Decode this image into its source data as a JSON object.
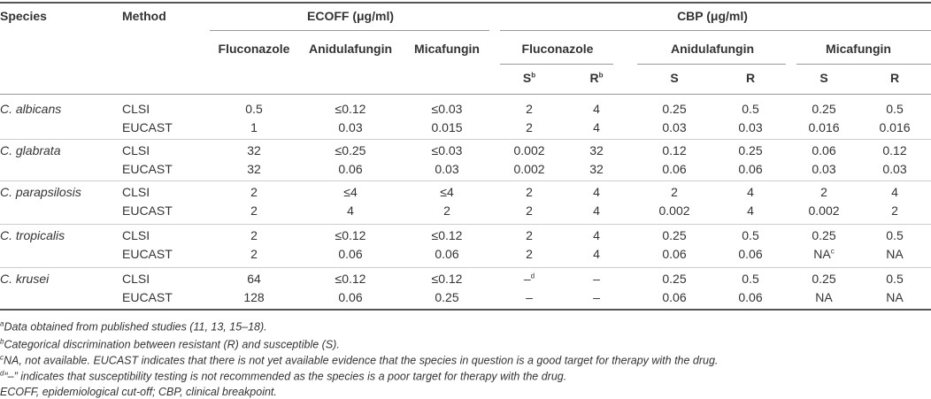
{
  "header": {
    "species": "Species",
    "method": "Method",
    "ecoff": "ECOFF (μg/ml)",
    "cbp": "CBP (μg/ml)",
    "ecoff_drugs": [
      "Fluconazole",
      "Anidulafungin",
      "Micafungin"
    ],
    "cbp_drugs": [
      "Fluconazole",
      "Anidulafungin",
      "Micafungin"
    ],
    "cbp_subcols": [
      {
        "text": "S",
        "sup": "b"
      },
      {
        "text": "R",
        "sup": "b"
      },
      {
        "text": "S"
      },
      {
        "text": "R"
      },
      {
        "text": "S"
      },
      {
        "text": "R"
      }
    ]
  },
  "rows": [
    {
      "species": "C. albicans",
      "lines": [
        {
          "method": "CLSI",
          "values": [
            "0.5",
            "≤0.12",
            "≤0.03",
            "2",
            "4",
            "0.25",
            "0.5",
            "0.25",
            "0.5"
          ]
        },
        {
          "method": "EUCAST",
          "values": [
            "1",
            "0.03",
            "0.015",
            "2",
            "4",
            "0.03",
            "0.03",
            "0.016",
            "0.016"
          ]
        }
      ]
    },
    {
      "species": "C. glabrata",
      "lines": [
        {
          "method": "CLSI",
          "values": [
            "32",
            "≤0.25",
            "≤0.03",
            "0.002",
            "32",
            "0.12",
            "0.25",
            "0.06",
            "0.12"
          ]
        },
        {
          "method": "EUCAST",
          "values": [
            "32",
            "0.06",
            "0.03",
            "0.002",
            "32",
            "0.06",
            "0.06",
            "0.03",
            "0.03"
          ]
        }
      ]
    },
    {
      "species": "C. parapsilosis",
      "lines": [
        {
          "method": "CLSI",
          "values": [
            "2",
            "≤4",
            "≤4",
            "2",
            "4",
            "2",
            "4",
            "2",
            "4"
          ]
        },
        {
          "method": "EUCAST",
          "values": [
            "2",
            "4",
            "2",
            "2",
            "4",
            "0.002",
            "4",
            "0.002",
            "2"
          ]
        }
      ]
    },
    {
      "species": "C. tropicalis",
      "lines": [
        {
          "method": "CLSI",
          "values": [
            "2",
            "≤0.12",
            "≤0.12",
            "2",
            "4",
            "0.25",
            "0.5",
            "0.25",
            "0.5"
          ]
        },
        {
          "method": "EUCAST",
          "values": [
            "2",
            "0.06",
            "0.06",
            "2",
            "4",
            "0.06",
            "0.06",
            {
              "text": "NA",
              "sup": "c"
            },
            "NA"
          ]
        }
      ]
    },
    {
      "species": "C. krusei",
      "lines": [
        {
          "method": "CLSI",
          "values": [
            "64",
            "≤0.12",
            "≤0.12",
            {
              "text": "–",
              "sup": "d"
            },
            "–",
            "0.25",
            "0.5",
            "0.25",
            "0.5"
          ]
        },
        {
          "method": "EUCAST",
          "values": [
            "128",
            "0.06",
            "0.25",
            "–",
            "–",
            "0.06",
            "0.06",
            "NA",
            "NA"
          ]
        }
      ]
    }
  ],
  "footnotes": [
    {
      "sup": "a",
      "text": "Data obtained from published studies (11, 13, 15–18)."
    },
    {
      "sup": "b",
      "text": "Categorical discrimination between resistant (R) and susceptible (S)."
    },
    {
      "sup": "c",
      "text": "NA, not available. EUCAST indicates that there is not yet available evidence that the species in question is a good target for therapy with the drug."
    },
    {
      "sup": "d",
      "text": "“–” indicates that susceptibility testing is not recommended as the species is a poor target for therapy with the drug."
    },
    {
      "text": "ECOFF, epidemiological cut-off; CBP, clinical breakpoint."
    }
  ]
}
